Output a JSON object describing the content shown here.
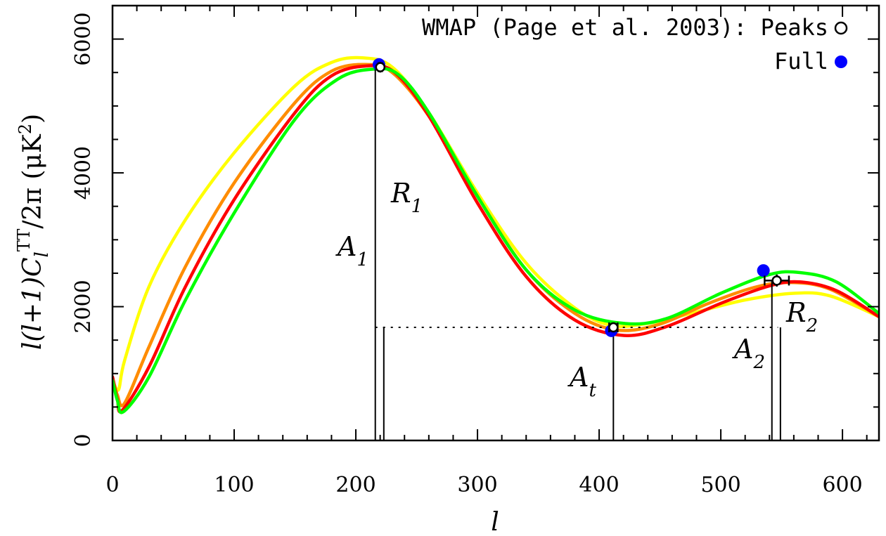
{
  "chart_data": {
    "type": "line",
    "xlabel": "l",
    "ylabel": "l(l+1)C_l^TT/2π (μK²)",
    "ylabel_parts": {
      "lead": "l(l+1)",
      "c": "C",
      "sub": "l",
      "sup": "TT",
      "tail": "/2π (μK",
      "pow": "2",
      "close": ")"
    },
    "xlim": [
      0,
      630
    ],
    "ylim": [
      0,
      6500
    ],
    "x_ticks": [
      0,
      100,
      200,
      300,
      400,
      500,
      600
    ],
    "x_tick_labels": [
      "0",
      "100",
      "200",
      "300",
      "400",
      "500",
      "600"
    ],
    "y_ticks": [
      0,
      2000,
      4000,
      6000
    ],
    "y_tick_labels": [
      "0",
      "2000",
      "4000",
      "6000"
    ],
    "legend": {
      "placement": "top-right",
      "entries": [
        {
          "label": "WMAP (Page et al. 2003): Peaks",
          "marker": "open-circle"
        },
        {
          "label": "Full",
          "marker": "filled-circle",
          "color": "#0000ff"
        }
      ]
    },
    "series": [
      {
        "color": "#ffff00",
        "points": [
          [
            0,
            900
          ],
          [
            5,
            760
          ],
          [
            10,
            1200
          ],
          [
            30,
            2300
          ],
          [
            60,
            3300
          ],
          [
            100,
            4300
          ],
          [
            150,
            5300
          ],
          [
            180,
            5650
          ],
          [
            205,
            5720
          ],
          [
            230,
            5580
          ],
          [
            260,
            4900
          ],
          [
            300,
            3700
          ],
          [
            340,
            2650
          ],
          [
            380,
            1980
          ],
          [
            410,
            1720
          ],
          [
            440,
            1750
          ],
          [
            480,
            1920
          ],
          [
            520,
            2100
          ],
          [
            560,
            2200
          ],
          [
            590,
            2160
          ],
          [
            630,
            1850
          ]
        ]
      },
      {
        "color": "#ff8c00",
        "points": [
          [
            0,
            950
          ],
          [
            4,
            680
          ],
          [
            10,
            560
          ],
          [
            30,
            1400
          ],
          [
            60,
            2600
          ],
          [
            100,
            3850
          ],
          [
            150,
            5050
          ],
          [
            180,
            5520
          ],
          [
            208,
            5620
          ],
          [
            230,
            5500
          ],
          [
            260,
            4850
          ],
          [
            300,
            3650
          ],
          [
            340,
            2550
          ],
          [
            380,
            1900
          ],
          [
            415,
            1650
          ],
          [
            450,
            1740
          ],
          [
            490,
            2050
          ],
          [
            530,
            2300
          ],
          [
            560,
            2360
          ],
          [
            590,
            2260
          ],
          [
            630,
            1850
          ]
        ]
      },
      {
        "color": "#ff0000",
        "points": [
          [
            0,
            950
          ],
          [
            4,
            620
          ],
          [
            8,
            450
          ],
          [
            30,
            1100
          ],
          [
            60,
            2300
          ],
          [
            100,
            3600
          ],
          [
            150,
            4900
          ],
          [
            180,
            5450
          ],
          [
            210,
            5600
          ],
          [
            232,
            5500
          ],
          [
            260,
            4850
          ],
          [
            300,
            3550
          ],
          [
            340,
            2450
          ],
          [
            380,
            1800
          ],
          [
            420,
            1570
          ],
          [
            455,
            1700
          ],
          [
            500,
            2050
          ],
          [
            540,
            2310
          ],
          [
            565,
            2370
          ],
          [
            595,
            2240
          ],
          [
            630,
            1850
          ]
        ]
      },
      {
        "color": "#00ff00",
        "points": [
          [
            0,
            900
          ],
          [
            4,
            600
          ],
          [
            9,
            430
          ],
          [
            30,
            950
          ],
          [
            60,
            2100
          ],
          [
            100,
            3400
          ],
          [
            150,
            4800
          ],
          [
            185,
            5400
          ],
          [
            214,
            5550
          ],
          [
            235,
            5470
          ],
          [
            260,
            4900
          ],
          [
            300,
            3650
          ],
          [
            340,
            2550
          ],
          [
            380,
            1950
          ],
          [
            420,
            1750
          ],
          [
            455,
            1820
          ],
          [
            500,
            2200
          ],
          [
            540,
            2480
          ],
          [
            565,
            2510
          ],
          [
            595,
            2370
          ],
          [
            630,
            1900
          ]
        ]
      }
    ],
    "peaks_open": [
      {
        "l": 220.1,
        "value": 5580,
        "xerr": 1.5,
        "yerr": 80
      },
      {
        "l": 411.7,
        "value": 1690,
        "xerr": 3.5,
        "yerr": 50
      },
      {
        "l": 546,
        "value": 2390,
        "xerr": 10,
        "yerr": 90
      }
    ],
    "peaks_full": [
      {
        "l": 219,
        "value": 5620
      },
      {
        "l": 410,
        "value": 1640
      },
      {
        "l": 535,
        "value": 2540
      }
    ],
    "reference_lines": {
      "dotted_level": 1690,
      "dotted_from": 216,
      "dotted_to": 547,
      "verticals": [
        {
          "x": 216,
          "to": 5580
        },
        {
          "x": 223,
          "to": 1690
        },
        {
          "x": 411.7,
          "to": 1690
        },
        {
          "x": 542,
          "to": 2390
        },
        {
          "x": 549,
          "to": 1690
        }
      ]
    },
    "annotations": [
      {
        "main": "A",
        "sub": "1"
      },
      {
        "main": "R",
        "sub": "1"
      },
      {
        "main": "A",
        "sub": "t"
      },
      {
        "main": "A",
        "sub": "2"
      },
      {
        "main": "R",
        "sub": "2"
      }
    ]
  }
}
